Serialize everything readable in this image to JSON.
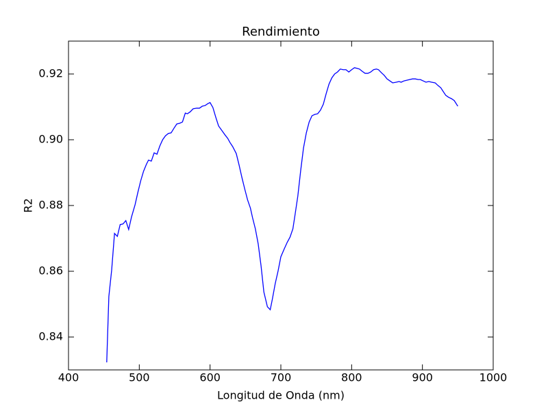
{
  "chart_data": {
    "type": "line",
    "title": "Rendimiento",
    "x_label": "Longitud de Onda (nm)",
    "y_label": "R2",
    "x": [
      454,
      457,
      461,
      465,
      469,
      473,
      477,
      481,
      485,
      489,
      494,
      498,
      502,
      506,
      510,
      513,
      517,
      521,
      525,
      529,
      533,
      537,
      541,
      545,
      549,
      553,
      557,
      561,
      565,
      568,
      572,
      576,
      581,
      585,
      589,
      593,
      597,
      600,
      604,
      608,
      612,
      617,
      621,
      625,
      628,
      632,
      637,
      641,
      645,
      649,
      653,
      657,
      660,
      664,
      668,
      672,
      676,
      681,
      685,
      688,
      692,
      696,
      700,
      705,
      709,
      713,
      717,
      720,
      724,
      728,
      732,
      736,
      740,
      744,
      748,
      752,
      756,
      760,
      764,
      768,
      772,
      776,
      780,
      784,
      788,
      792,
      796,
      800,
      804,
      808,
      811,
      815,
      819,
      823,
      827,
      831,
      835,
      838,
      842,
      846,
      850,
      854,
      858,
      863,
      867,
      870,
      874,
      878,
      882,
      886,
      890,
      894,
      897,
      901,
      905,
      909,
      913,
      918,
      922,
      926,
      929,
      933,
      937,
      941,
      945,
      950
    ],
    "values": [
      0.8323,
      0.8523,
      0.8604,
      0.8715,
      0.8706,
      0.8742,
      0.8744,
      0.8754,
      0.8727,
      0.8765,
      0.8802,
      0.884,
      0.8875,
      0.8904,
      0.8925,
      0.8938,
      0.8935,
      0.896,
      0.8956,
      0.8981,
      0.9,
      0.9012,
      0.9019,
      0.9021,
      0.9035,
      0.9048,
      0.905,
      0.9054,
      0.9081,
      0.9079,
      0.9085,
      0.9094,
      0.9096,
      0.9096,
      0.9102,
      0.9104,
      0.911,
      0.9113,
      0.9098,
      0.9069,
      0.9042,
      0.9027,
      0.9015,
      0.9004,
      0.8992,
      0.8979,
      0.8958,
      0.8923,
      0.8885,
      0.885,
      0.8817,
      0.8792,
      0.8763,
      0.8729,
      0.8683,
      0.8617,
      0.8537,
      0.8492,
      0.8483,
      0.8515,
      0.8562,
      0.86,
      0.8644,
      0.8669,
      0.8688,
      0.8704,
      0.8729,
      0.8771,
      0.8829,
      0.8906,
      0.8975,
      0.9021,
      0.9054,
      0.9073,
      0.9077,
      0.9079,
      0.909,
      0.9108,
      0.914,
      0.9169,
      0.9188,
      0.92,
      0.9206,
      0.9215,
      0.9213,
      0.9213,
      0.9206,
      0.9213,
      0.9219,
      0.9217,
      0.9215,
      0.9208,
      0.9202,
      0.9202,
      0.9206,
      0.9213,
      0.9215,
      0.9213,
      0.9204,
      0.9196,
      0.9185,
      0.9179,
      0.9173,
      0.9175,
      0.9177,
      0.9175,
      0.9179,
      0.9181,
      0.9183,
      0.9185,
      0.9185,
      0.9183,
      0.9183,
      0.9179,
      0.9175,
      0.9177,
      0.9175,
      0.9173,
      0.9165,
      0.9158,
      0.9148,
      0.9135,
      0.9129,
      0.9125,
      0.9119,
      0.9102
    ],
    "color": "#0000ff",
    "xlim": [
      400,
      1000
    ],
    "xticks": [
      400,
      500,
      600,
      700,
      800,
      900,
      1000
    ],
    "ylim": [
      0.83,
      0.93
    ],
    "yticks": [
      0.84,
      0.86,
      0.88,
      {
        "value": 0.9,
        "label": "0.90"
      },
      0.92
    ],
    "grid": false
  }
}
